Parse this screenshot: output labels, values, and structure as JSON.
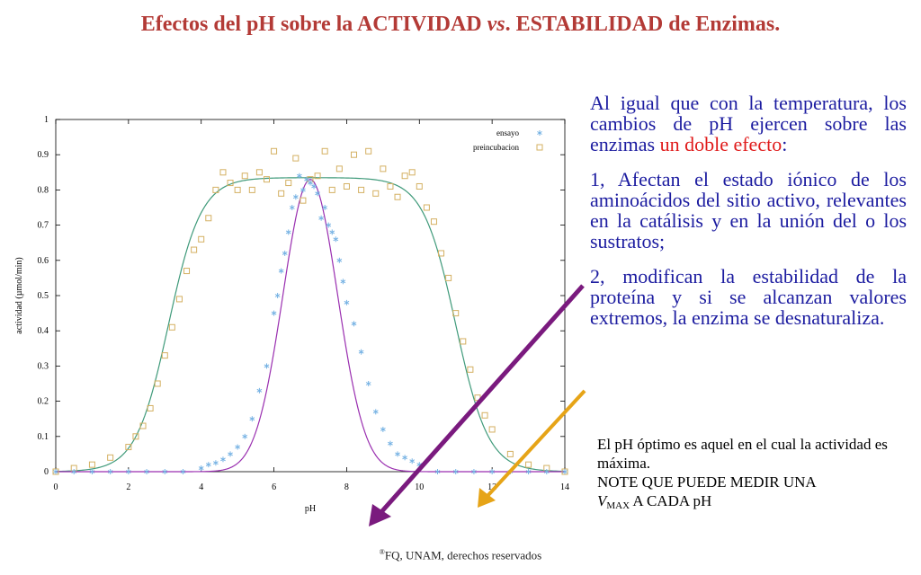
{
  "title": {
    "part1": "Efectos del pH sobre la ACTIVIDAD ",
    "vs": "vs",
    "part2": ". ESTABILIDAD de Enzimas."
  },
  "colors": {
    "title": "#b33a36",
    "body_text": "#1c1ca0",
    "highlight": "#e01a1a",
    "arrow_purple": "#7a1a7e",
    "arrow_orange": "#e6a417",
    "ensayo_points": "#74b1e3",
    "ensayo_curve": "#9a2fb0",
    "preincubacion_points": "#d4b062",
    "preincubacion_curve": "#3f9a7a"
  },
  "paragraphs": {
    "p1_a": "Al igual que con la temperatura, los cambios de pH ejercen sobre las enzimas ",
    "p1_red": "un doble efecto",
    "p1_b": ":",
    "p2": "1, Afectan el estado iónico de los aminoácidos del sitio activo, relevantes en la catálisis y en la unión del o los sustratos;",
    "p3": "2, modifican la estabilidad de la proteína y si se alcanzan valores extremos, la enzima se desnaturaliza."
  },
  "note": {
    "line1": "El pH óptimo es aquel en el cual la actividad es máxima.",
    "line2": "NOTE QUE PUEDE MEDIR UNA",
    "vmax_v": "V",
    "vmax_sub": "MAX",
    "vmax_rest": " A CADA pH"
  },
  "copyright": {
    "mark": "®",
    "text": "FQ, UNAM, derechos reservados"
  },
  "chart_data": {
    "type": "scatter",
    "xlabel": "pH",
    "ylabel": "actividad (µmol/min)",
    "xlim": [
      0,
      14
    ],
    "ylim": [
      0,
      1
    ],
    "xticks": [
      "0",
      "2",
      "4",
      "6",
      "8",
      "10",
      "12",
      "14"
    ],
    "yticks": [
      "0",
      "0.1",
      "0.2",
      "0.3",
      "0.4",
      "0.5",
      "0.6",
      "0.7",
      "0.8",
      "0.9",
      "1"
    ],
    "grid": false,
    "legend": "top-right",
    "series": [
      {
        "name": "ensayo",
        "marker": "asterisk",
        "x": [
          0.0,
          0.5,
          1.0,
          1.5,
          2.0,
          2.5,
          3.0,
          3.5,
          4.0,
          4.2,
          4.4,
          4.6,
          4.8,
          5.0,
          5.2,
          5.4,
          5.6,
          5.8,
          6.0,
          6.1,
          6.2,
          6.3,
          6.4,
          6.5,
          6.6,
          6.7,
          6.8,
          6.9,
          7.0,
          7.1,
          7.2,
          7.3,
          7.4,
          7.5,
          7.6,
          7.7,
          7.8,
          7.9,
          8.0,
          8.2,
          8.4,
          8.6,
          8.8,
          9.0,
          9.2,
          9.4,
          9.6,
          9.8,
          10.0,
          10.5,
          11.0,
          11.5,
          12.0,
          12.5,
          13.0,
          13.5,
          14.0
        ],
        "y": [
          0.0,
          0.0,
          0.0,
          0.0,
          0.0,
          0.0,
          0.0,
          0.0,
          0.01,
          0.02,
          0.025,
          0.035,
          0.05,
          0.07,
          0.1,
          0.15,
          0.23,
          0.3,
          0.45,
          0.5,
          0.57,
          0.62,
          0.68,
          0.75,
          0.78,
          0.84,
          0.8,
          0.83,
          0.82,
          0.81,
          0.79,
          0.72,
          0.75,
          0.7,
          0.68,
          0.66,
          0.6,
          0.54,
          0.48,
          0.42,
          0.34,
          0.25,
          0.17,
          0.12,
          0.08,
          0.05,
          0.04,
          0.03,
          0.02,
          0.0,
          0.0,
          0.0,
          0.0,
          0.0,
          0.0,
          0.0,
          0.0
        ]
      },
      {
        "name": "preincubacion",
        "marker": "square",
        "x": [
          0.0,
          0.5,
          1.0,
          1.5,
          2.0,
          2.2,
          2.4,
          2.6,
          2.8,
          3.0,
          3.2,
          3.4,
          3.6,
          3.8,
          4.0,
          4.2,
          4.4,
          4.6,
          4.8,
          5.0,
          5.2,
          5.4,
          5.6,
          5.8,
          6.0,
          6.2,
          6.4,
          6.6,
          6.8,
          7.0,
          7.2,
          7.4,
          7.6,
          7.8,
          8.0,
          8.2,
          8.4,
          8.6,
          8.8,
          9.0,
          9.2,
          9.4,
          9.6,
          9.8,
          10.0,
          10.2,
          10.4,
          10.6,
          10.8,
          11.0,
          11.2,
          11.4,
          11.6,
          11.8,
          12.0,
          12.5,
          13.0,
          13.5,
          14.0
        ],
        "y": [
          0.0,
          0.01,
          0.02,
          0.04,
          0.07,
          0.1,
          0.13,
          0.18,
          0.25,
          0.33,
          0.41,
          0.49,
          0.57,
          0.63,
          0.66,
          0.72,
          0.8,
          0.85,
          0.82,
          0.8,
          0.84,
          0.8,
          0.85,
          0.83,
          0.91,
          0.79,
          0.82,
          0.89,
          0.77,
          0.83,
          0.84,
          0.91,
          0.8,
          0.86,
          0.81,
          0.9,
          0.8,
          0.91,
          0.79,
          0.86,
          0.81,
          0.78,
          0.84,
          0.85,
          0.81,
          0.75,
          0.71,
          0.62,
          0.55,
          0.45,
          0.37,
          0.29,
          0.21,
          0.16,
          0.12,
          0.05,
          0.02,
          0.01,
          0.0
        ]
      }
    ],
    "fit_curves": [
      {
        "series": "ensayo",
        "model": "gaussian",
        "peak": 0.83,
        "center": 7.0,
        "width": 0.75
      },
      {
        "series": "preincubacion",
        "model": "double-sigmoid",
        "plateau": 0.835,
        "low_midpoint": 3.1,
        "high_midpoint": 11.0,
        "slope": 0.45
      }
    ]
  }
}
